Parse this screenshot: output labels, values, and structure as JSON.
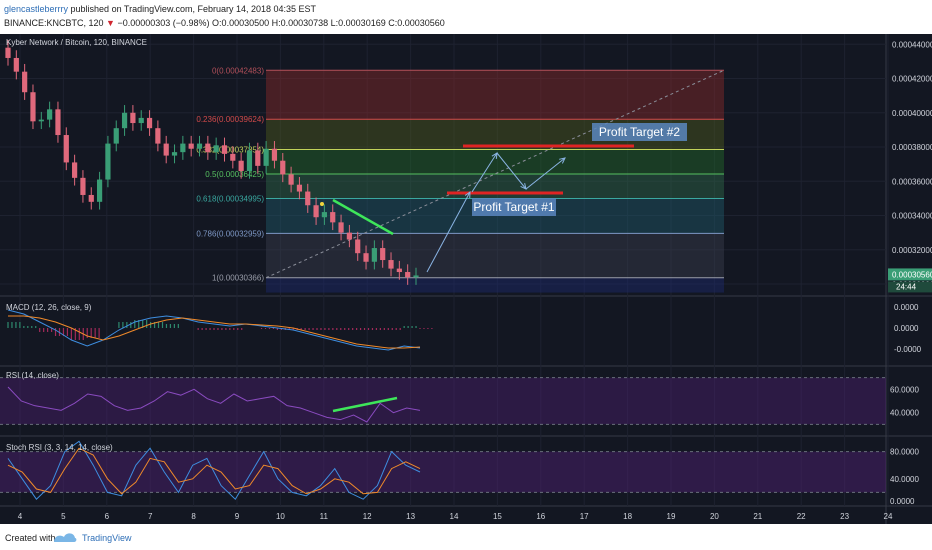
{
  "header": {
    "username": "glencastleberrry",
    "published": " published on TradingView.com, February 14, 2018 04:35 EST",
    "symbol_line": "BINANCE:KNCBTC, 120",
    "change_arrow": "▼",
    "ohlc": "−0.00000303 (−0.98%) O:0.00030500 H:0.00030738 L:0.00030169 C:0.00030560"
  },
  "footer": {
    "created_with": "Created with",
    "brand": "TradingView"
  },
  "colors": {
    "background": "#131722",
    "up": "#3a9e76",
    "down": "#e0697c",
    "annotation_green": "#3ee65a",
    "annotation_red": "#e02424",
    "annotation_arrow": "#8ab4e4",
    "target_box": "#5a86c0"
  },
  "chart_data": [
    {
      "type": "candlestick",
      "title": "Kyber Network / Bitcoin, 120, BINANCE",
      "x_ticks": [
        "4",
        "5",
        "6",
        "7",
        "8",
        "9",
        "10",
        "11",
        "12",
        "13",
        "14",
        "15",
        "16",
        "17",
        "18",
        "19",
        "20",
        "21",
        "22",
        "23",
        "24"
      ],
      "y_ticks": [
        "0.00044000",
        "0.00042000",
        "0.00040000",
        "0.00038000",
        "0.00036000",
        "0.00034000",
        "0.00032000",
        "0.00030000"
      ],
      "ylim": [
        0.000293,
        0.000446
      ],
      "last_price": "0.00030560",
      "countdown": "24:44",
      "close_series": [
        0.000432,
        0.000424,
        0.000412,
        0.000395,
        0.000396,
        0.000402,
        0.000387,
        0.000371,
        0.000362,
        0.000352,
        0.000348,
        0.000361,
        0.000382,
        0.000391,
        0.0004,
        0.000394,
        0.000397,
        0.000391,
        0.000382,
        0.000375,
        0.000377,
        0.000382,
        0.000379,
        0.000382,
        0.000377,
        0.000381,
        0.000376,
        0.000372,
        0.000366,
        0.000378,
        0.000369,
        0.000379,
        0.000372,
        0.000364,
        0.000358,
        0.000354,
        0.000346,
        0.000339,
        0.000342,
        0.000336,
        0.00033,
        0.000326,
        0.000318,
        0.000313,
        0.000321,
        0.000314,
        0.000309,
        0.000307,
        0.000304,
        0.000305
      ],
      "fibonacci": [
        {
          "label": "0(0.00042483)",
          "value": 0.00042483
        },
        {
          "label": "0.236(0.00039624)",
          "value": 0.00039624
        },
        {
          "label": "0.382(0.00037854)",
          "value": 0.00037854
        },
        {
          "label": "0.5(0.00036425)",
          "value": 0.00036425
        },
        {
          "label": "0.618(0.00034995)",
          "value": 0.00034995
        },
        {
          "label": "0.786(0.00032959)",
          "value": 0.00032959
        },
        {
          "label": "1(0.00030366)",
          "value": 0.00030366
        }
      ],
      "annotations": [
        "Profit Target #1",
        "Profit Target #2"
      ]
    },
    {
      "type": "line",
      "title": "MACD (12, 26, close, 9)",
      "y_ticks": [
        "0.0000",
        "0.0000",
        "-0.0000"
      ],
      "series": [
        {
          "name": "MACD",
          "values": [
            0.9,
            0.7,
            0.3,
            -0.1,
            -0.6,
            -0.9,
            -0.6,
            -0.1,
            0.3,
            0.5,
            0.6,
            0.5,
            0.3,
            0.2,
            0.1,
            0.2,
            0.1,
            0.0,
            -0.1,
            -0.3,
            -0.5,
            -0.7,
            -0.9,
            -1.0,
            -1.1,
            -0.9,
            -1.0
          ]
        },
        {
          "name": "Signal",
          "values": [
            0.6,
            0.6,
            0.5,
            0.3,
            0.0,
            -0.4,
            -0.6,
            -0.4,
            -0.1,
            0.2,
            0.4,
            0.5,
            0.4,
            0.3,
            0.2,
            0.2,
            0.15,
            0.1,
            0.0,
            -0.2,
            -0.4,
            -0.6,
            -0.8,
            -0.9,
            -1.0,
            -1.0,
            -0.95
          ]
        }
      ]
    },
    {
      "type": "line",
      "title": "RSI (14, close)",
      "y_ticks": [
        "60.0000",
        "40.0000"
      ],
      "ylim": [
        20,
        80
      ],
      "series": [
        {
          "name": "RSI",
          "values": [
            62,
            50,
            46,
            44,
            42,
            48,
            56,
            54,
            46,
            42,
            44,
            50,
            58,
            55,
            60,
            52,
            48,
            56,
            50,
            52,
            54,
            46,
            44,
            40,
            36,
            34,
            38,
            32,
            48,
            40,
            44,
            42
          ]
        }
      ]
    },
    {
      "type": "line",
      "title": "Stoch RSI (3, 3, 14, 14, close)",
      "y_ticks": [
        "80.0000",
        "40.0000",
        "0.0000"
      ],
      "ylim": [
        0,
        100
      ],
      "series": [
        {
          "name": "K",
          "values": [
            70,
            40,
            10,
            30,
            80,
            95,
            60,
            20,
            15,
            60,
            85,
            50,
            20,
            60,
            70,
            30,
            10,
            45,
            80,
            40,
            20,
            15,
            30,
            55,
            20,
            10,
            30,
            80,
            60,
            50
          ]
        },
        {
          "name": "D",
          "values": [
            60,
            50,
            25,
            20,
            55,
            85,
            75,
            40,
            18,
            35,
            70,
            65,
            35,
            40,
            60,
            50,
            25,
            30,
            60,
            55,
            30,
            18,
            25,
            40,
            35,
            18,
            20,
            55,
            65,
            55
          ]
        }
      ]
    }
  ]
}
